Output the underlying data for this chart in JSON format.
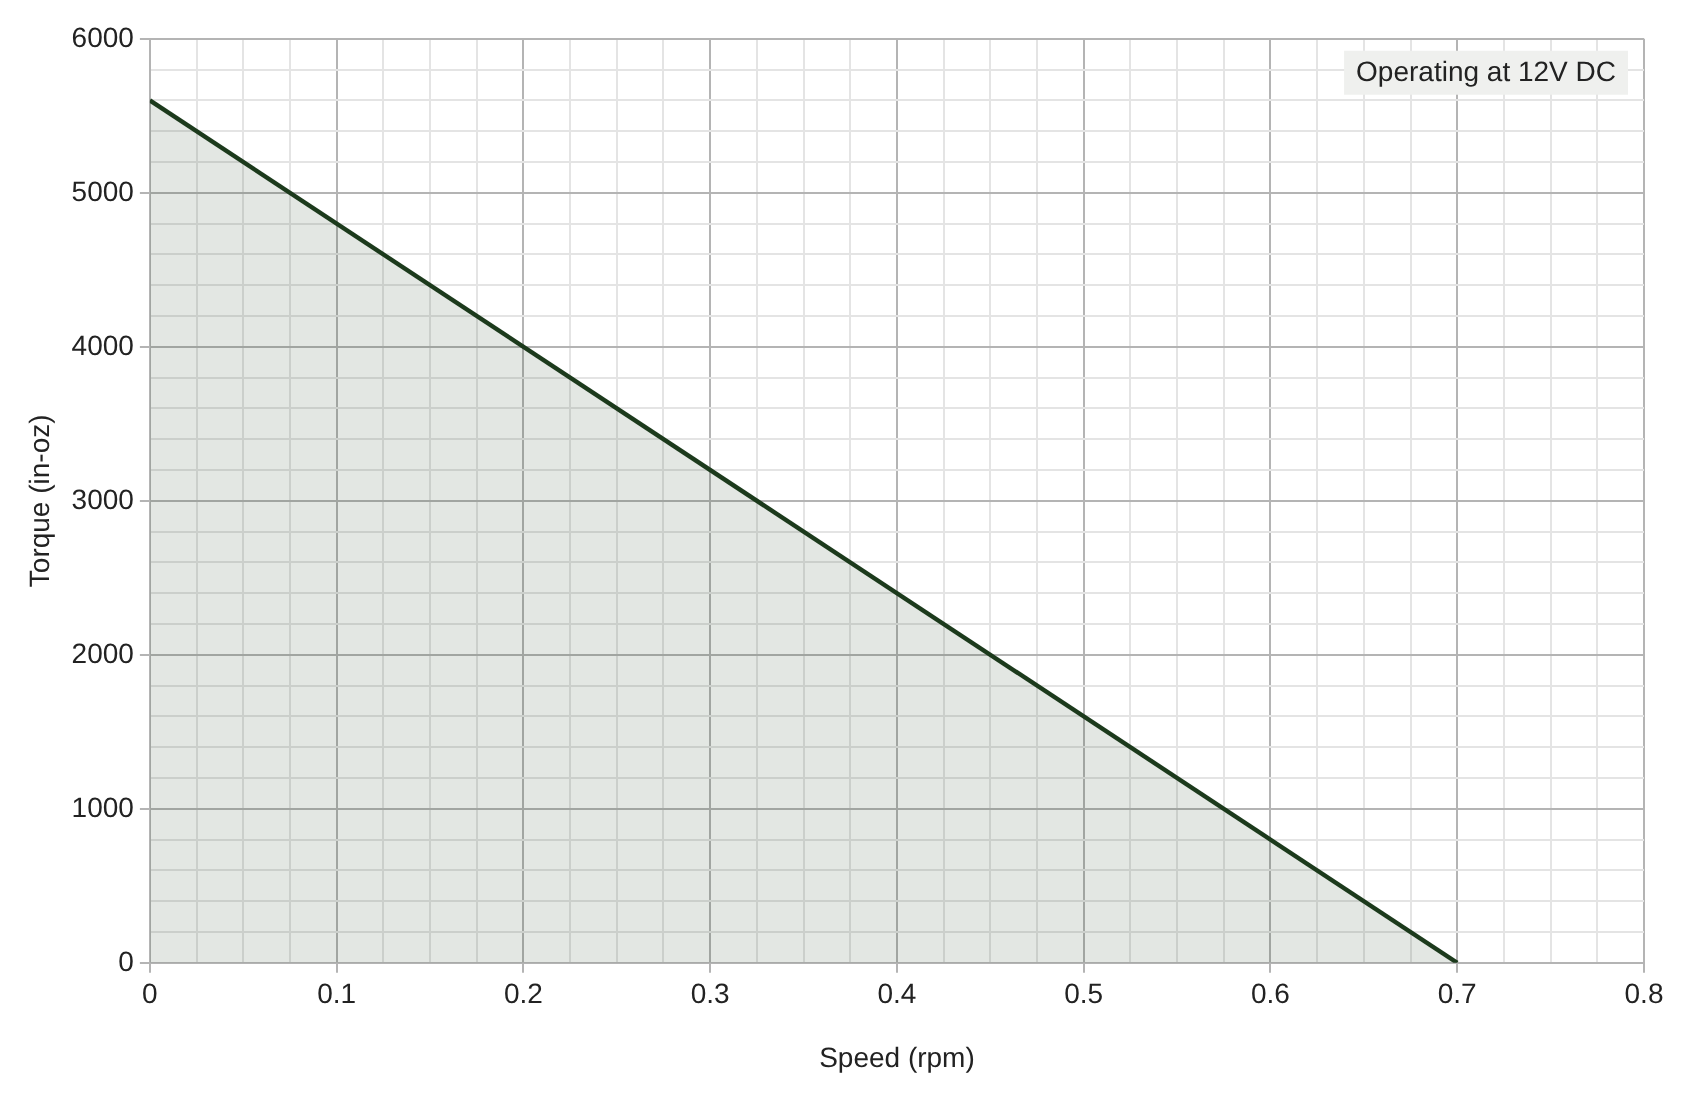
{
  "chart_data": {
    "type": "line",
    "xlabel": "Speed (rpm)",
    "ylabel": "Torque (in-oz)",
    "x": [
      0,
      0.7
    ],
    "series": [
      {
        "type": "area",
        "color": "#1c3a1c",
        "values": [
          5600,
          0
        ]
      }
    ],
    "xlim": [
      0,
      0.8
    ],
    "xticks": [
      0,
      {
        "value": 0.025,
        "label": null
      },
      {
        "value": 0.05,
        "label": null
      },
      {
        "value": 0.075,
        "label": null
      },
      0.1,
      {
        "value": 0.125,
        "label": null
      },
      {
        "value": 0.15,
        "label": null
      },
      {
        "value": 0.175,
        "label": null
      },
      0.2,
      {
        "value": 0.225,
        "label": null
      },
      {
        "value": 0.25,
        "label": null
      },
      {
        "value": 0.275,
        "label": null
      },
      0.3,
      {
        "value": 0.325,
        "label": null
      },
      {
        "value": 0.35,
        "label": null
      },
      {
        "value": 0.375,
        "label": null
      },
      0.4,
      {
        "value": 0.425,
        "label": null
      },
      {
        "value": 0.45,
        "label": null
      },
      {
        "value": 0.475,
        "label": null
      },
      0.5,
      {
        "value": 0.525,
        "label": null
      },
      {
        "value": 0.55,
        "label": null
      },
      {
        "value": 0.575,
        "label": null
      },
      0.6,
      {
        "value": 0.625,
        "label": null
      },
      {
        "value": 0.65,
        "label": null
      },
      {
        "value": 0.675,
        "label": null
      },
      0.7,
      {
        "value": 0.725,
        "label": null
      },
      {
        "value": 0.75,
        "label": null
      },
      {
        "value": 0.775,
        "label": null
      },
      0.8
    ],
    "ylim": [
      0,
      6000
    ],
    "yticks": [
      0,
      {
        "value": 200,
        "label": null
      },
      {
        "value": 400,
        "label": null
      },
      {
        "value": 600,
        "label": null
      },
      {
        "value": 800,
        "label": null
      },
      1000,
      {
        "value": 1200,
        "label": null
      },
      {
        "value": 1400,
        "label": null
      },
      {
        "value": 1600,
        "label": null
      },
      {
        "value": 1800,
        "label": null
      },
      2000,
      {
        "value": 2200,
        "label": null
      },
      {
        "value": 2400,
        "label": null
      },
      {
        "value": 2600,
        "label": null
      },
      {
        "value": 2800,
        "label": null
      },
      3000,
      {
        "value": 3200,
        "label": null
      },
      {
        "value": 3400,
        "label": null
      },
      {
        "value": 3600,
        "label": null
      },
      {
        "value": 3800,
        "label": null
      },
      4000,
      {
        "value": 4200,
        "label": null
      },
      {
        "value": 4400,
        "label": null
      },
      {
        "value": 4600,
        "label": null
      },
      {
        "value": 4800,
        "label": null
      },
      5000,
      {
        "value": 5200,
        "label": null
      },
      {
        "value": 5400,
        "label": null
      },
      {
        "value": 5600,
        "label": null
      },
      {
        "value": 5800,
        "label": null
      },
      6000
    ],
    "grid": true,
    "annotations": [
      "Operating at 12V DC"
    ],
    "marker": "none",
    "line_style": "solid"
  }
}
